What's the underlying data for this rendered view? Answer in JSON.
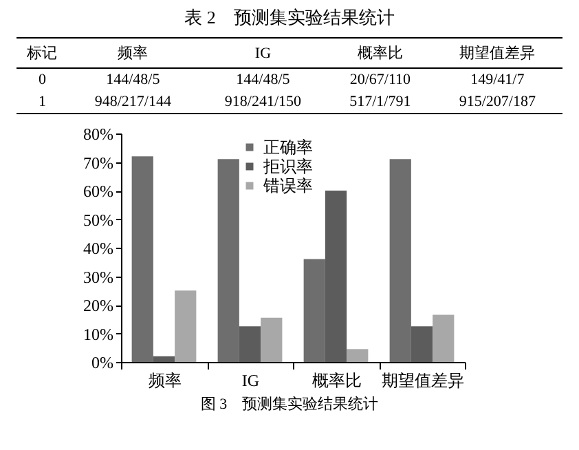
{
  "chart_data": [
    {
      "type": "other",
      "title": "表 2　预测集实验结果统计",
      "categories": [
        "标记",
        "频率",
        "IG",
        "概率比",
        "期望值差异"
      ],
      "annotations": [
        "0",
        "144/48/5",
        "144/48/5",
        "20/67/110",
        "149/41/7",
        "1",
        "948/217/144",
        "918/241/150",
        "517/1/791",
        "915/207/187"
      ]
    },
    {
      "type": "bar",
      "categories": [
        "频率",
        "IG",
        "概率比",
        "期望值差异"
      ],
      "series": [
        {
          "name": "正确率",
          "color": "#6e6e6e",
          "values": [
            72,
            71,
            36,
            71
          ]
        },
        {
          "name": "拒识率",
          "color": "#5c5c5c",
          "values": [
            2,
            12.5,
            60,
            12.5
          ]
        },
        {
          "name": "错误率",
          "color": "#a8a8a8",
          "values": [
            25,
            15.5,
            4.5,
            16.5
          ]
        }
      ],
      "ylim": [
        0,
        80
      ],
      "yticks": [
        {
          "value": 0,
          "label": "0%"
        },
        {
          "value": 10,
          "label": "10%"
        },
        {
          "value": 20,
          "label": "20%"
        },
        {
          "value": 30,
          "label": "30%"
        },
        {
          "value": 40,
          "label": "40%"
        },
        {
          "value": 50,
          "label": "50%"
        },
        {
          "value": 60,
          "label": "60%"
        },
        {
          "value": 70,
          "label": "70%"
        },
        {
          "value": 80,
          "label": "80%"
        }
      ],
      "legend": "top",
      "annotations": [
        "图 3　预测集实验结果统计"
      ]
    }
  ]
}
